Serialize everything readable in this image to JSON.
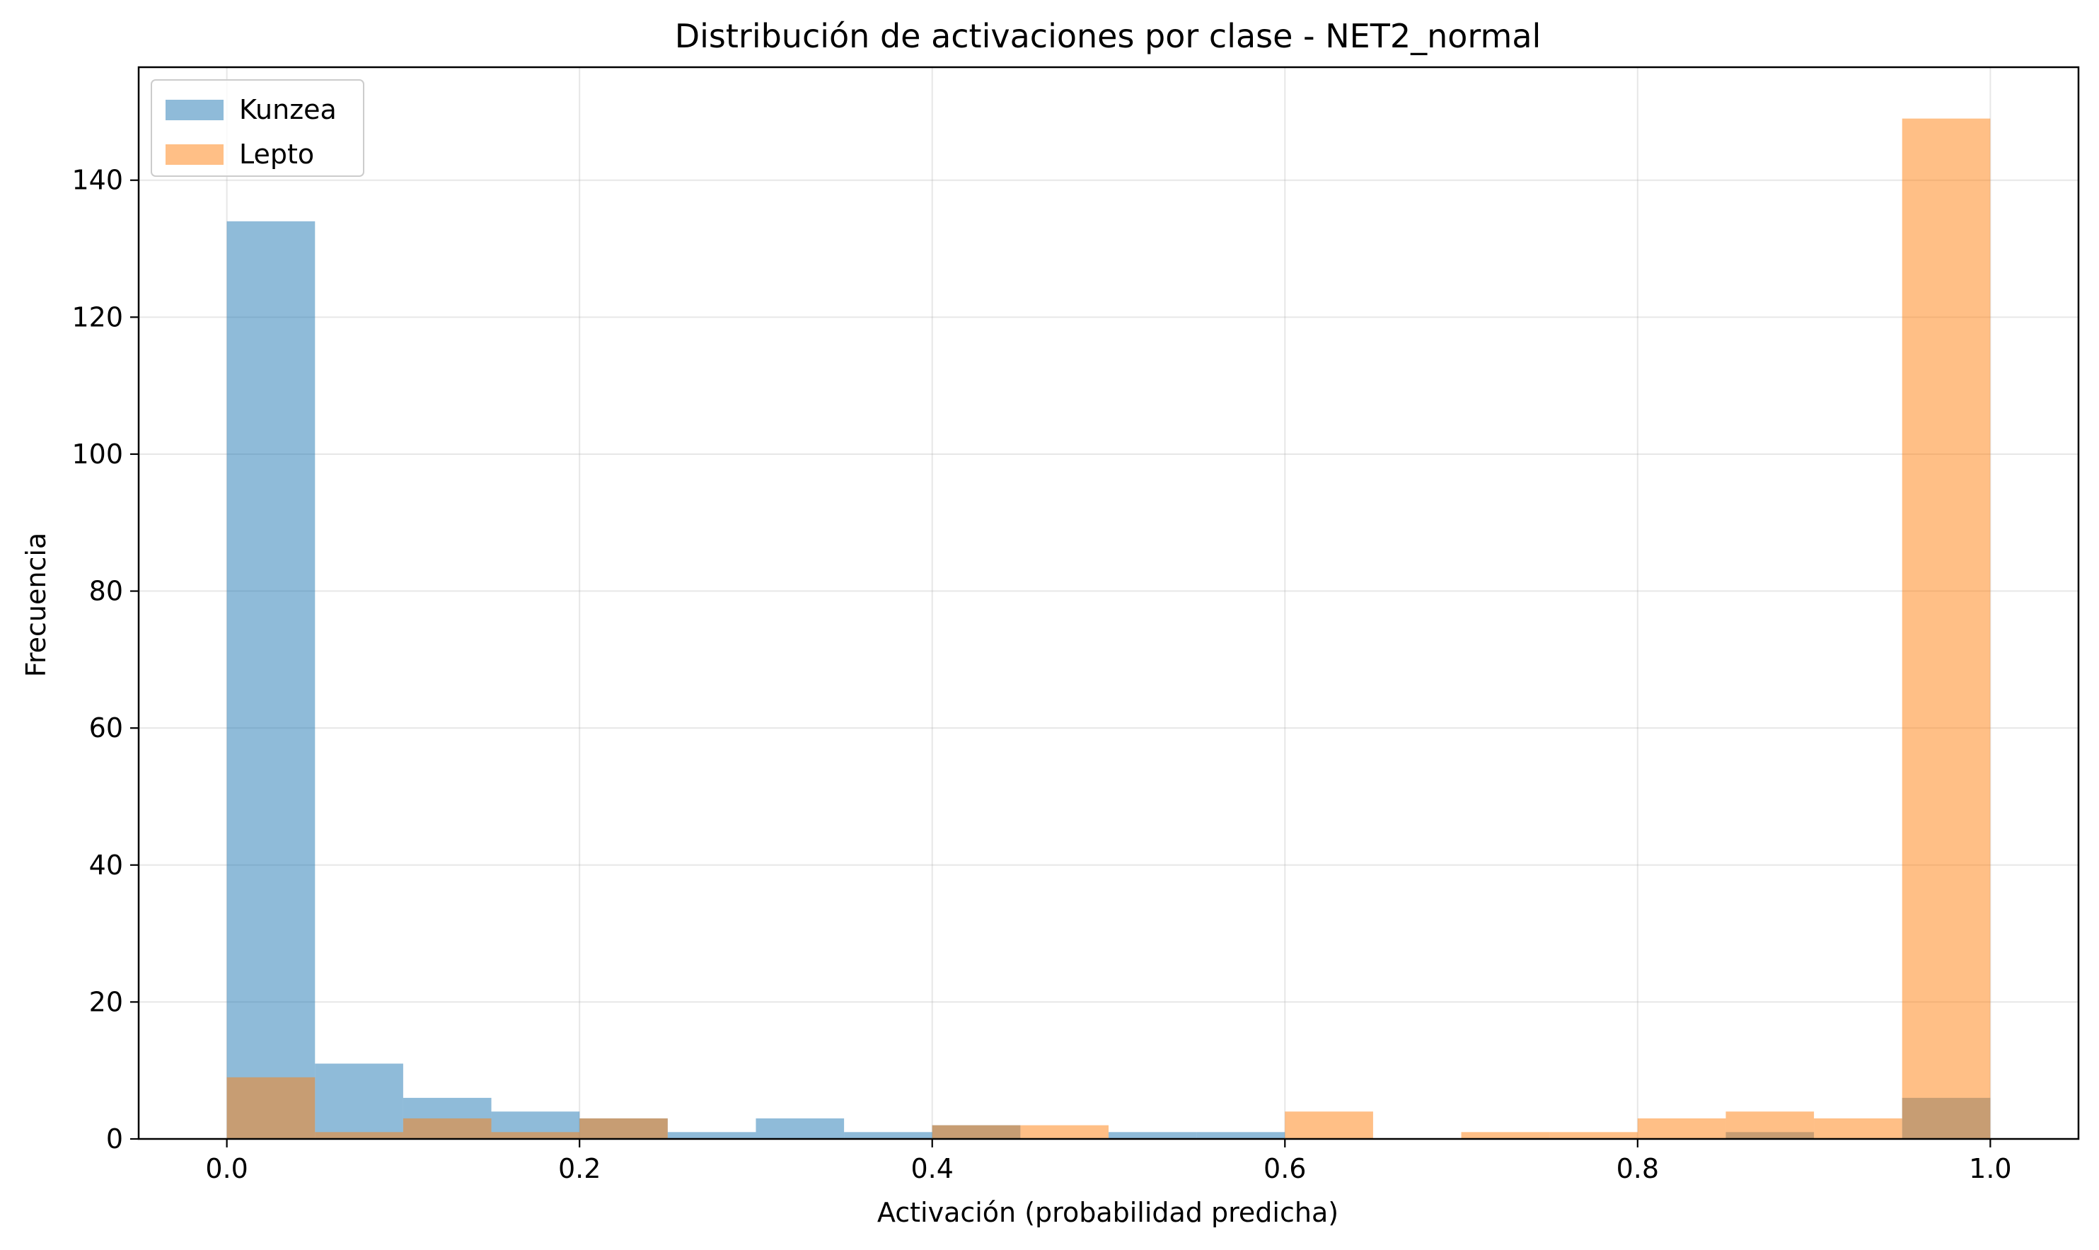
{
  "chart_data": {
    "type": "bar",
    "title": "Distribución de activaciones por clase - NET2_normal",
    "xlabel": "Activación (probabilidad predicha)",
    "ylabel": "Frecuencia",
    "xlim": [
      -0.05,
      1.05
    ],
    "ylim": [
      0,
      156.5
    ],
    "x_ticks": [
      0.0,
      0.2,
      0.4,
      0.6,
      0.8,
      1.0
    ],
    "x_tick_labels": [
      "0.0",
      "0.2",
      "0.4",
      "0.6",
      "0.8",
      "1.0"
    ],
    "y_ticks": [
      0,
      20,
      40,
      60,
      80,
      100,
      120,
      140
    ],
    "y_tick_labels": [
      "0",
      "20",
      "40",
      "60",
      "80",
      "100",
      "120",
      "140"
    ],
    "grid": true,
    "legend_position": "top-left",
    "bin_edges": [
      0.0,
      0.05,
      0.1,
      0.15,
      0.2,
      0.25,
      0.3,
      0.35,
      0.4,
      0.45,
      0.5,
      0.55,
      0.6,
      0.65,
      0.7,
      0.75,
      0.8,
      0.85,
      0.9,
      0.95,
      1.0
    ],
    "series": [
      {
        "name": "Kunzea",
        "color": "#1f77b4",
        "values": [
          134,
          11,
          6,
          4,
          3,
          1,
          3,
          1,
          2,
          0,
          1,
          1,
          0,
          0,
          0,
          0,
          0,
          1,
          0,
          6
        ]
      },
      {
        "name": "Lepto",
        "color": "#ff7f0e",
        "values": [
          9,
          1,
          3,
          1,
          3,
          0,
          0,
          0,
          2,
          2,
          0,
          0,
          4,
          0,
          1,
          1,
          3,
          4,
          3,
          149
        ]
      }
    ]
  }
}
